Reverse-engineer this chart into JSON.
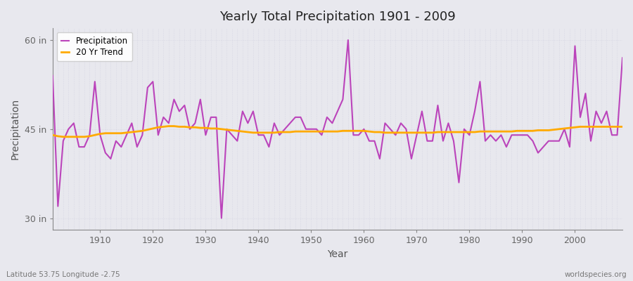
{
  "title": "Yearly Total Precipitation 1901 - 2009",
  "xlabel": "Year",
  "ylabel": "Precipitation",
  "lat_lon_label": "Latitude 53.75 Longitude -2.75",
  "watermark": "worldspecies.org",
  "ylim": [
    28,
    62
  ],
  "yticks": [
    30,
    45,
    60
  ],
  "ytick_labels": [
    "30 in",
    "45 in",
    "60 in"
  ],
  "precip_color": "#bb44bb",
  "trend_color": "#ffaa00",
  "background_color": "#e8e8ee",
  "plot_bg_color": "#e8e8ee",
  "years": [
    1901,
    1902,
    1903,
    1904,
    1905,
    1906,
    1907,
    1908,
    1909,
    1910,
    1911,
    1912,
    1913,
    1914,
    1915,
    1916,
    1917,
    1918,
    1919,
    1920,
    1921,
    1922,
    1923,
    1924,
    1925,
    1926,
    1927,
    1928,
    1929,
    1930,
    1931,
    1932,
    1933,
    1934,
    1935,
    1936,
    1937,
    1938,
    1939,
    1940,
    1941,
    1942,
    1943,
    1944,
    1945,
    1946,
    1947,
    1948,
    1949,
    1950,
    1951,
    1952,
    1953,
    1954,
    1955,
    1956,
    1957,
    1958,
    1959,
    1960,
    1961,
    1962,
    1963,
    1964,
    1965,
    1966,
    1967,
    1968,
    1969,
    1970,
    1971,
    1972,
    1973,
    1974,
    1975,
    1976,
    1977,
    1978,
    1979,
    1980,
    1981,
    1982,
    1983,
    1984,
    1985,
    1986,
    1987,
    1988,
    1989,
    1990,
    1991,
    1992,
    1993,
    1994,
    1995,
    1996,
    1997,
    1998,
    1999,
    2000,
    2001,
    2002,
    2003,
    2004,
    2005,
    2006,
    2007,
    2008,
    2009
  ],
  "precip": [
    54,
    32,
    43,
    45,
    46,
    42,
    42,
    44,
    53,
    44,
    41,
    40,
    43,
    42,
    44,
    46,
    42,
    44,
    52,
    53,
    44,
    47,
    46,
    50,
    48,
    49,
    45,
    46,
    50,
    44,
    47,
    47,
    30,
    45,
    44,
    43,
    48,
    46,
    48,
    44,
    44,
    42,
    46,
    44,
    45,
    46,
    47,
    47,
    45,
    45,
    45,
    44,
    47,
    46,
    48,
    50,
    60,
    44,
    44,
    45,
    43,
    43,
    40,
    46,
    45,
    44,
    46,
    45,
    40,
    44,
    48,
    43,
    43,
    49,
    43,
    46,
    43,
    36,
    45,
    44,
    48,
    53,
    43,
    44,
    43,
    44,
    42,
    44,
    44,
    44,
    44,
    43,
    41,
    42,
    43,
    43,
    43,
    45,
    42,
    59,
    47,
    51,
    43,
    48,
    46,
    48,
    44,
    44,
    57
  ],
  "trend": [
    44.0,
    43.8,
    43.7,
    43.7,
    43.7,
    43.7,
    43.7,
    43.8,
    44.0,
    44.2,
    44.3,
    44.3,
    44.3,
    44.3,
    44.4,
    44.5,
    44.6,
    44.7,
    44.9,
    45.1,
    45.3,
    45.4,
    45.5,
    45.5,
    45.4,
    45.4,
    45.3,
    45.3,
    45.2,
    45.2,
    45.1,
    45.1,
    45.0,
    44.9,
    44.8,
    44.7,
    44.6,
    44.5,
    44.4,
    44.4,
    44.4,
    44.4,
    44.4,
    44.5,
    44.5,
    44.5,
    44.6,
    44.6,
    44.6,
    44.6,
    44.6,
    44.6,
    44.6,
    44.6,
    44.6,
    44.7,
    44.7,
    44.7,
    44.7,
    44.7,
    44.6,
    44.5,
    44.5,
    44.4,
    44.4,
    44.4,
    44.4,
    44.4,
    44.4,
    44.4,
    44.4,
    44.4,
    44.4,
    44.5,
    44.5,
    44.5,
    44.5,
    44.5,
    44.5,
    44.5,
    44.5,
    44.6,
    44.6,
    44.6,
    44.6,
    44.6,
    44.6,
    44.6,
    44.7,
    44.7,
    44.7,
    44.7,
    44.8,
    44.8,
    44.8,
    44.9,
    45.0,
    45.1,
    45.2,
    45.3,
    45.4,
    45.4,
    45.4,
    45.4,
    45.4,
    45.4,
    45.4,
    45.4,
    45.4
  ]
}
